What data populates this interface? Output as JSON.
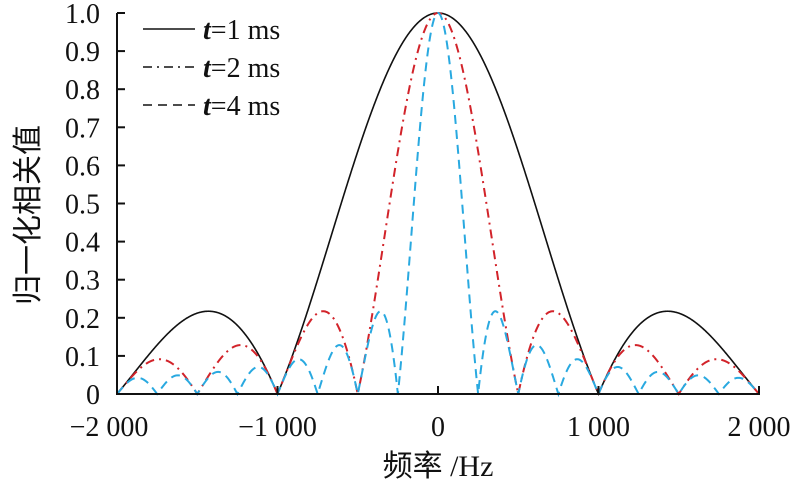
{
  "chart_data": {
    "type": "line",
    "title": "",
    "xlabel": "频率 /Hz",
    "ylabel": "归一化相关值",
    "xlim": [
      -2000,
      2000
    ],
    "ylim": [
      0,
      1.0
    ],
    "xticks": [
      -2000,
      -1000,
      0,
      1000,
      2000
    ],
    "xtick_labels": [
      "−2 000",
      "−1 000",
      "0",
      "1 000",
      "2 000"
    ],
    "yticks": [
      0,
      0.1,
      0.2,
      0.3,
      0.4,
      0.5,
      0.6,
      0.7,
      0.8,
      0.9,
      1.0
    ],
    "ytick_labels": [
      "0",
      "0.1",
      "0.2",
      "0.3",
      "0.4",
      "0.5",
      "0.6",
      "0.7",
      "0.8",
      "0.9",
      "1.0"
    ],
    "grid": false,
    "legend_position": "top-left",
    "model": "normalized correlation = |sin(pi f t)/(pi f t)|",
    "series": [
      {
        "name_italic": "t",
        "name_rest": "=1 ms",
        "t_ms": 1,
        "color": "#111111",
        "dash": "solid",
        "peak": {
          "x": 0,
          "y": 1.0
        },
        "zeros": [
          -2000,
          -1000,
          1000,
          2000
        ],
        "sidelobe_peak": 0.217
      },
      {
        "name_italic": "t",
        "name_rest": "=2 ms",
        "t_ms": 2,
        "color": "#d2232a",
        "dash": "dash-dot",
        "peak": {
          "x": 0,
          "y": 1.0
        },
        "zeros": [
          -2000,
          -1500,
          -1000,
          -500,
          500,
          1000,
          1500,
          2000
        ],
        "sidelobe_peak": 0.217
      },
      {
        "name_italic": "t",
        "name_rest": "=4 ms",
        "t_ms": 4,
        "color": "#29a9e0",
        "dash": "dashed",
        "peak": {
          "x": 0,
          "y": 1.0
        },
        "zeros_step_hz": 250,
        "sidelobe_peak": 0.217
      }
    ]
  }
}
